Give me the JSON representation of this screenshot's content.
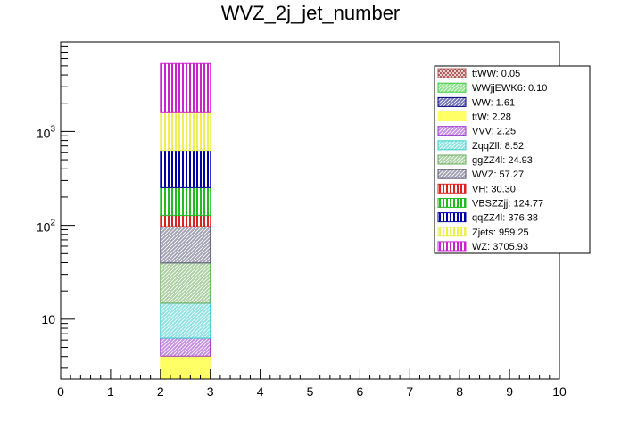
{
  "title": "WVZ_2j_jet_number",
  "chart_data": {
    "type": "bar",
    "stacked": true,
    "title": "WVZ_2j_jet_number",
    "xlabel": "",
    "ylabel": "",
    "xlim": [
      0,
      10
    ],
    "ylim": [
      2.3,
      9000
    ],
    "y_scale": "log",
    "x_ticks": [
      "0",
      "1",
      "2",
      "3",
      "4",
      "5",
      "6",
      "7",
      "8",
      "9",
      "10"
    ],
    "y_tick_labels": [
      {
        "value": 10,
        "base": "10",
        "exp": ""
      },
      {
        "value": 100,
        "base": "10",
        "exp": "2"
      },
      {
        "value": 1000,
        "base": "10",
        "exp": "3"
      }
    ],
    "bin": [
      2,
      3
    ],
    "grid": false,
    "legend_position": "top-right",
    "series": [
      {
        "name": "ttWW: 0.05",
        "value": 0.05,
        "color": "#b05050",
        "pattern": "crosshatch"
      },
      {
        "name": "WWjjEWK6: 0.10",
        "value": 0.1,
        "color": "#33cc33",
        "pattern": "diag"
      },
      {
        "name": "WW: 1.61",
        "value": 1.61,
        "color": "#000080",
        "pattern": "diag"
      },
      {
        "name": "ttW: 2.28",
        "value": 2.28,
        "color": "#ffff66",
        "pattern": "solid"
      },
      {
        "name": "VVV: 2.25",
        "value": 2.25,
        "color": "#9933cc",
        "pattern": "diag"
      },
      {
        "name": "ZqqZll: 8.52",
        "value": 8.52,
        "color": "#33cccc",
        "pattern": "diag"
      },
      {
        "name": "ggZZ4l: 24.93",
        "value": 24.93,
        "color": "#66aa55",
        "pattern": "diag"
      },
      {
        "name": "WVZ: 57.27",
        "value": 57.27,
        "color": "#555577",
        "pattern": "diag"
      },
      {
        "name": "VH: 30.30",
        "value": 30.3,
        "color": "#dd2222",
        "pattern": "vertical"
      },
      {
        "name": "VBSZZjj: 124.77",
        "value": 124.77,
        "color": "#22bb22",
        "pattern": "vertical"
      },
      {
        "name": "qqZZ4l: 376.38",
        "value": 376.38,
        "color": "#0000aa",
        "pattern": "vertical"
      },
      {
        "name": "Zjets: 959.25",
        "value": 959.25,
        "color": "#eeee55",
        "pattern": "vertical"
      },
      {
        "name": "WZ: 3705.93",
        "value": 3705.93,
        "color": "#cc22cc",
        "pattern": "vertical"
      }
    ]
  }
}
